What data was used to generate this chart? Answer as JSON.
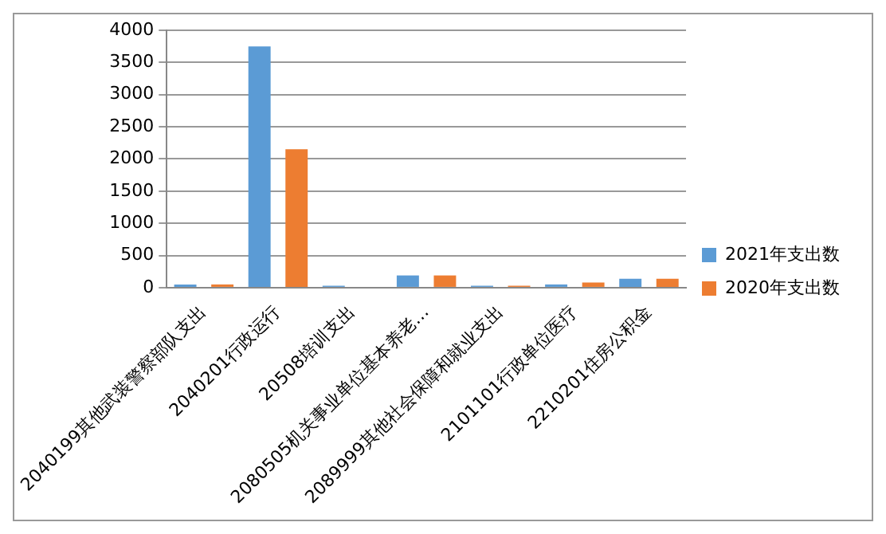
{
  "chart_data": {
    "type": "bar",
    "categories": [
      "2040199其他武装警察部队支出",
      "2040201行政运行",
      "20508培训支出",
      "2080505机关事业单位基本养老…",
      "2089999其他社会保障和就业支出",
      "2101101行政单位医疗",
      "2210201住房公积金"
    ],
    "series": [
      {
        "name": "2021年支出数",
        "color": "#5b9bd5",
        "values": [
          50,
          3750,
          30,
          190,
          30,
          50,
          140
        ]
      },
      {
        "name": "2020年支出数",
        "color": "#ed7d31",
        "values": [
          50,
          2150,
          null,
          190,
          30,
          80,
          140
        ]
      }
    ],
    "ylim": [
      0,
      4000
    ],
    "yticks": [
      0,
      500,
      1000,
      1500,
      2000,
      2500,
      3000,
      3500,
      4000
    ],
    "grid": "y",
    "legend": "right"
  }
}
